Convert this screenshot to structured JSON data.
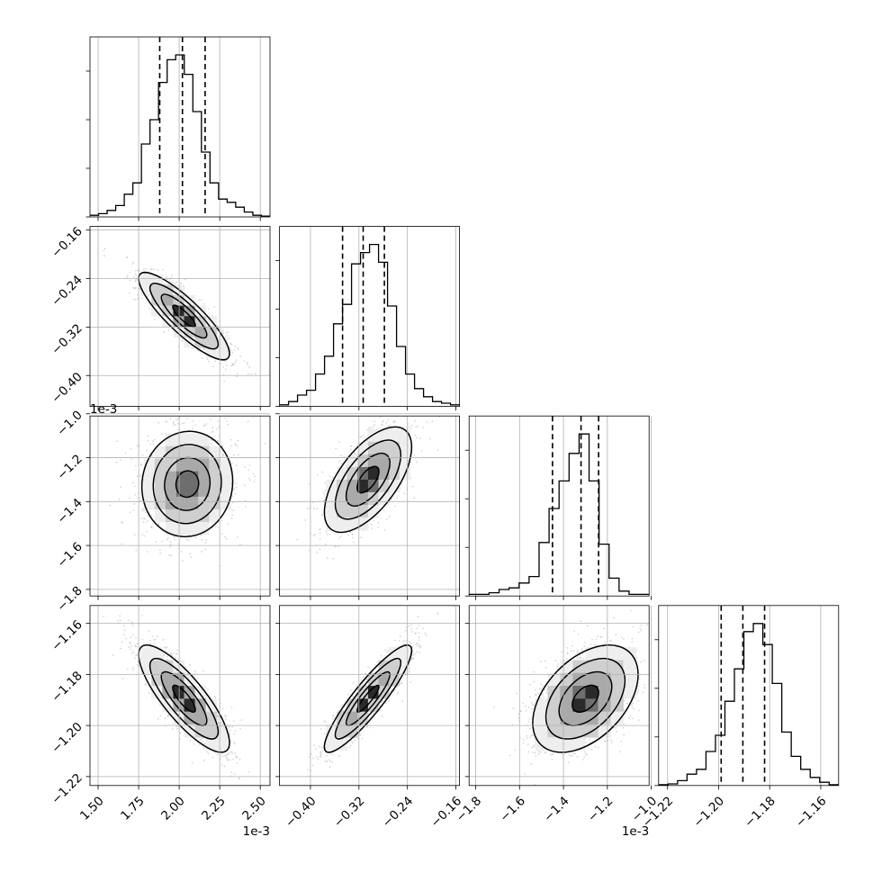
{
  "chart_data": {
    "type": "corner",
    "title": "",
    "parameters": [
      {
        "index": 0,
        "range": [
          0.00145,
          0.00256
        ],
        "ticks": [
          0.0015,
          0.00175,
          0.002,
          0.00225,
          0.0025
        ],
        "tick_labels": [
          "1.50",
          "1.75",
          "2.00",
          "2.25",
          "2.50"
        ],
        "offset_label": "1e-3",
        "quantiles": [
          0.00188,
          0.00202,
          0.00216
        ],
        "histogram": [
          0.01,
          0.02,
          0.04,
          0.07,
          0.14,
          0.21,
          0.45,
          0.6,
          0.83,
          0.97,
          1.0,
          0.88,
          0.65,
          0.4,
          0.21,
          0.11,
          0.09,
          0.06,
          0.03,
          0.01,
          0.005
        ]
      },
      {
        "index": 1,
        "range": [
          -0.451,
          -0.154
        ],
        "ticks": [
          -0.4,
          -0.32,
          -0.24,
          -0.16
        ],
        "tick_labels": [
          "−0.40",
          "−0.32",
          "−0.24",
          "−0.16"
        ],
        "offset_label": "",
        "quantiles": [
          -0.347,
          -0.313,
          -0.278
        ],
        "histogram": [
          0.01,
          0.03,
          0.07,
          0.1,
          0.2,
          0.31,
          0.51,
          0.63,
          0.88,
          0.95,
          1.0,
          0.89,
          0.62,
          0.37,
          0.2,
          0.11,
          0.06,
          0.03,
          0.02,
          0.01
        ]
      },
      {
        "index": 2,
        "range": [
          -0.00183,
          -0.00101
        ],
        "ticks": [
          -0.0018,
          -0.0016,
          -0.0014,
          -0.0012,
          -0.001
        ],
        "tick_labels": [
          "−1.8",
          "−1.6",
          "−1.4",
          "−1.2",
          "−1.0"
        ],
        "offset_label": "1e-3",
        "quantiles": [
          -0.00145,
          -0.00132,
          -0.00124
        ],
        "histogram": [
          0.01,
          0.01,
          0.02,
          0.04,
          0.05,
          0.08,
          0.12,
          0.33,
          0.54,
          0.71,
          0.88,
          1.0,
          0.71,
          0.32,
          0.11,
          0.03,
          0.01,
          0.01
        ]
      },
      {
        "index": 3,
        "range": [
          -1.2235,
          -1.153
        ],
        "ticks": [
          -1.22,
          -1.2,
          -1.18,
          -1.16
        ],
        "tick_labels": [
          "−1.22",
          "−1.20",
          "−1.18",
          "−1.16"
        ],
        "offset_label": "",
        "quantiles": [
          -1.199,
          -1.1905,
          -1.182
        ],
        "histogram": [
          0.005,
          0.01,
          0.03,
          0.07,
          0.1,
          0.21,
          0.31,
          0.52,
          0.72,
          0.95,
          1.0,
          0.87,
          0.63,
          0.33,
          0.18,
          0.1,
          0.05,
          0.02,
          0.005
        ]
      }
    ],
    "pairs": [
      {
        "x": 0,
        "y": 1,
        "mean": [
          0.00203,
          -0.302
        ],
        "sd": [
          0.00014,
          0.036
        ],
        "corr": -0.86
      },
      {
        "x": 0,
        "y": 2,
        "mean": [
          0.00205,
          -0.00132
        ],
        "sd": [
          0.00014,
          0.00012
        ],
        "corr": 0.05
      },
      {
        "x": 1,
        "y": 2,
        "mean": [
          -0.305,
          -0.0013
        ],
        "sd": [
          0.036,
          0.00012
        ],
        "corr": 0.62
      },
      {
        "x": 0,
        "y": 3,
        "mean": [
          0.00203,
          -1.1895
        ],
        "sd": [
          0.00014,
          0.0105
        ],
        "corr": -0.82
      },
      {
        "x": 1,
        "y": 3,
        "mean": [
          -0.305,
          -1.1895
        ],
        "sd": [
          0.036,
          0.0105
        ],
        "corr": 0.9
      },
      {
        "x": 2,
        "y": 3,
        "mean": [
          -0.0013,
          -1.1895
        ],
        "sd": [
          0.00012,
          0.0105
        ],
        "corr": 0.45
      }
    ],
    "contour_levels_sigma": [
      0.5,
      1.0,
      1.5,
      2.0
    ],
    "grid": true,
    "line_color": "#000000",
    "grid_color": "#b0b0b0",
    "scatter_color": "#bdbdbd"
  }
}
